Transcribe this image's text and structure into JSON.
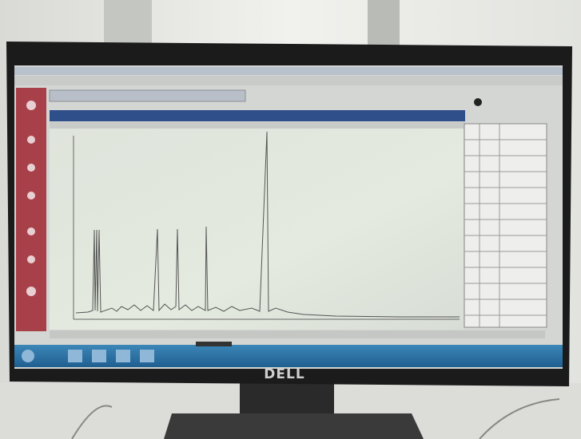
{
  "monitor": {
    "brand": "DELL"
  }
}
